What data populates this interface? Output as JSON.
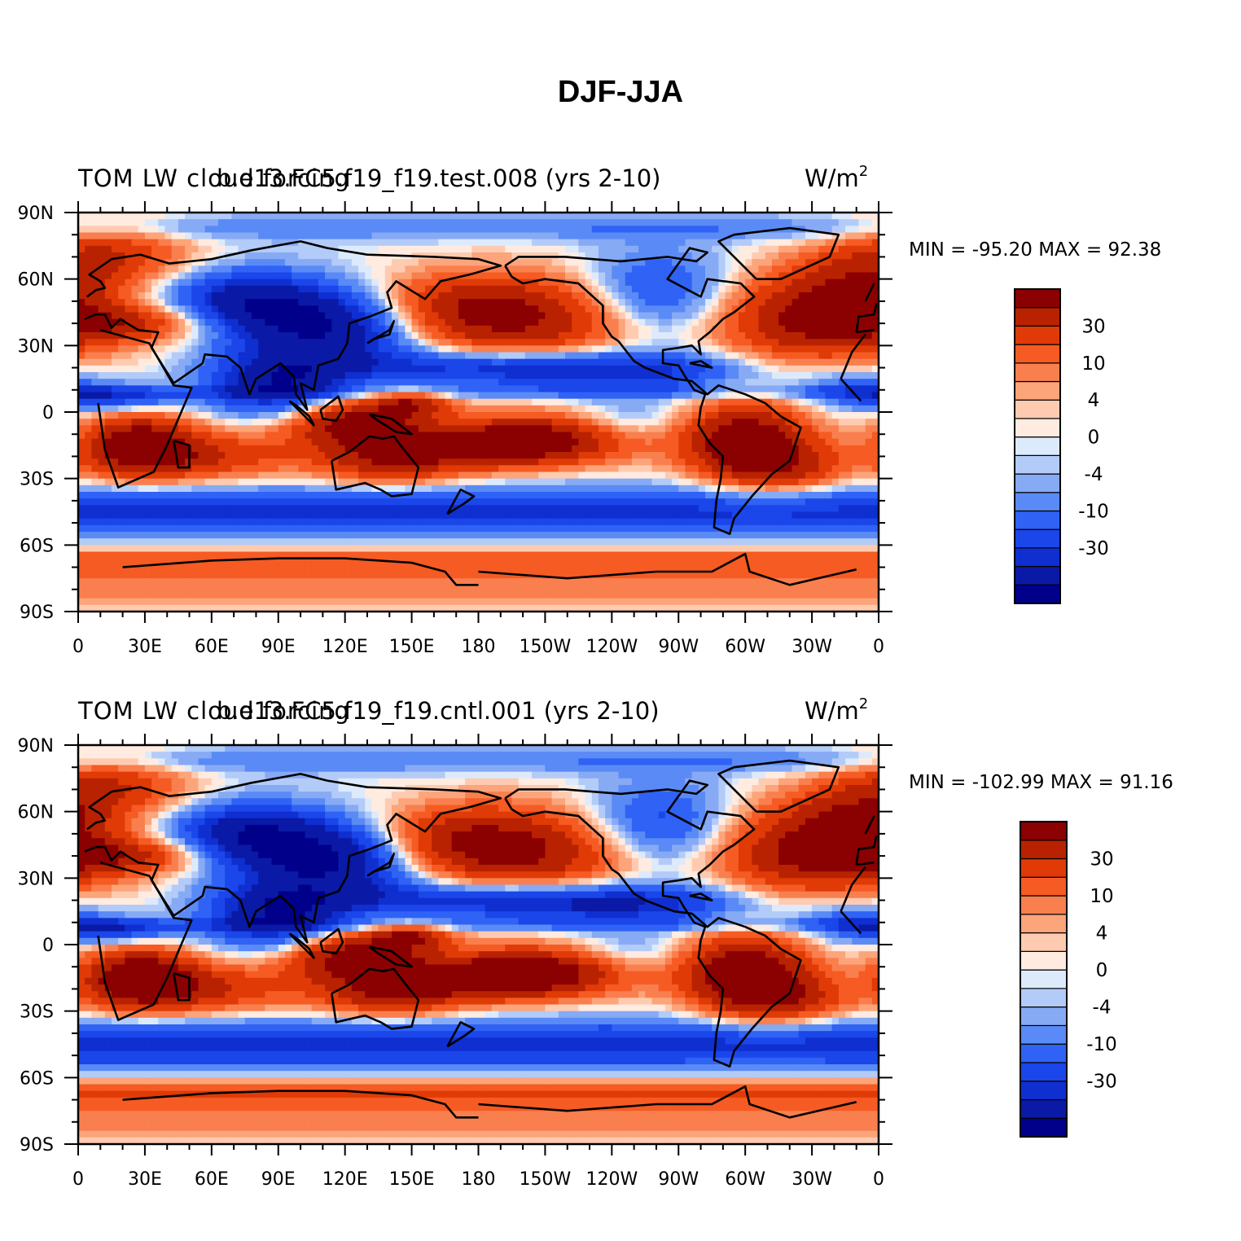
{
  "title": "DJF-JJA",
  "colors": {
    "levels": [
      "#00008b",
      "#0a1aa6",
      "#0f2fd0",
      "#1a46ea",
      "#2f62f5",
      "#5a8af5",
      "#87aaf5",
      "#b3cbf8",
      "#dceafc",
      "#ffebe0",
      "#ffcbb0",
      "#fca47a",
      "#f97f4f",
      "#f55b22",
      "#e03a06",
      "#b82200",
      "#8b0000"
    ],
    "coast": "#000000"
  },
  "chart_data": [
    {
      "type": "heatmap",
      "panel": "top",
      "left_title": "TOM LW cloud forcing",
      "center_title": "b.e13.FC5.f19_f19.test.008 (yrs 2-10)",
      "units_base": "W/m",
      "units_exp": "2",
      "stats": {
        "min_label": "MIN = ",
        "min": "-95.20",
        "max_label": "MAX = ",
        "max": "92.38"
      },
      "x_ticks": [
        "0",
        "30E",
        "60E",
        "90E",
        "120E",
        "150E",
        "180",
        "150W",
        "120W",
        "90W",
        "60W",
        "30W",
        "0"
      ],
      "y_ticks": [
        "90N",
        "60N",
        "30N",
        "0",
        "30S",
        "60S",
        "90S"
      ],
      "xlim": [
        0,
        360
      ],
      "ylim": [
        -90,
        90
      ],
      "colorbar_labels": [
        "30",
        "10",
        "4",
        "0",
        "-4",
        "-10",
        "-30"
      ],
      "field_scale": 1.0
    },
    {
      "type": "heatmap",
      "panel": "bottom",
      "left_title": "TOM LW cloud forcing",
      "center_title": "b.e13.FC5.f19_f19.cntl.001 (yrs 2-10)",
      "units_base": "W/m",
      "units_exp": "2",
      "stats": {
        "min_label": "MIN = ",
        "min": "-102.99",
        "max_label": "MAX = ",
        "max": "91.16"
      },
      "x_ticks": [
        "0",
        "30E",
        "60E",
        "90E",
        "120E",
        "150E",
        "180",
        "150W",
        "120W",
        "90W",
        "60W",
        "30W",
        "0"
      ],
      "y_ticks": [
        "90N",
        "60N",
        "30N",
        "0",
        "30S",
        "60S",
        "90S"
      ],
      "xlim": [
        0,
        360
      ],
      "ylim": [
        -90,
        90
      ],
      "colorbar_labels": [
        "30",
        "10",
        "4",
        "0",
        "-4",
        "-10",
        "-30"
      ],
      "field_scale": 1.05
    }
  ]
}
